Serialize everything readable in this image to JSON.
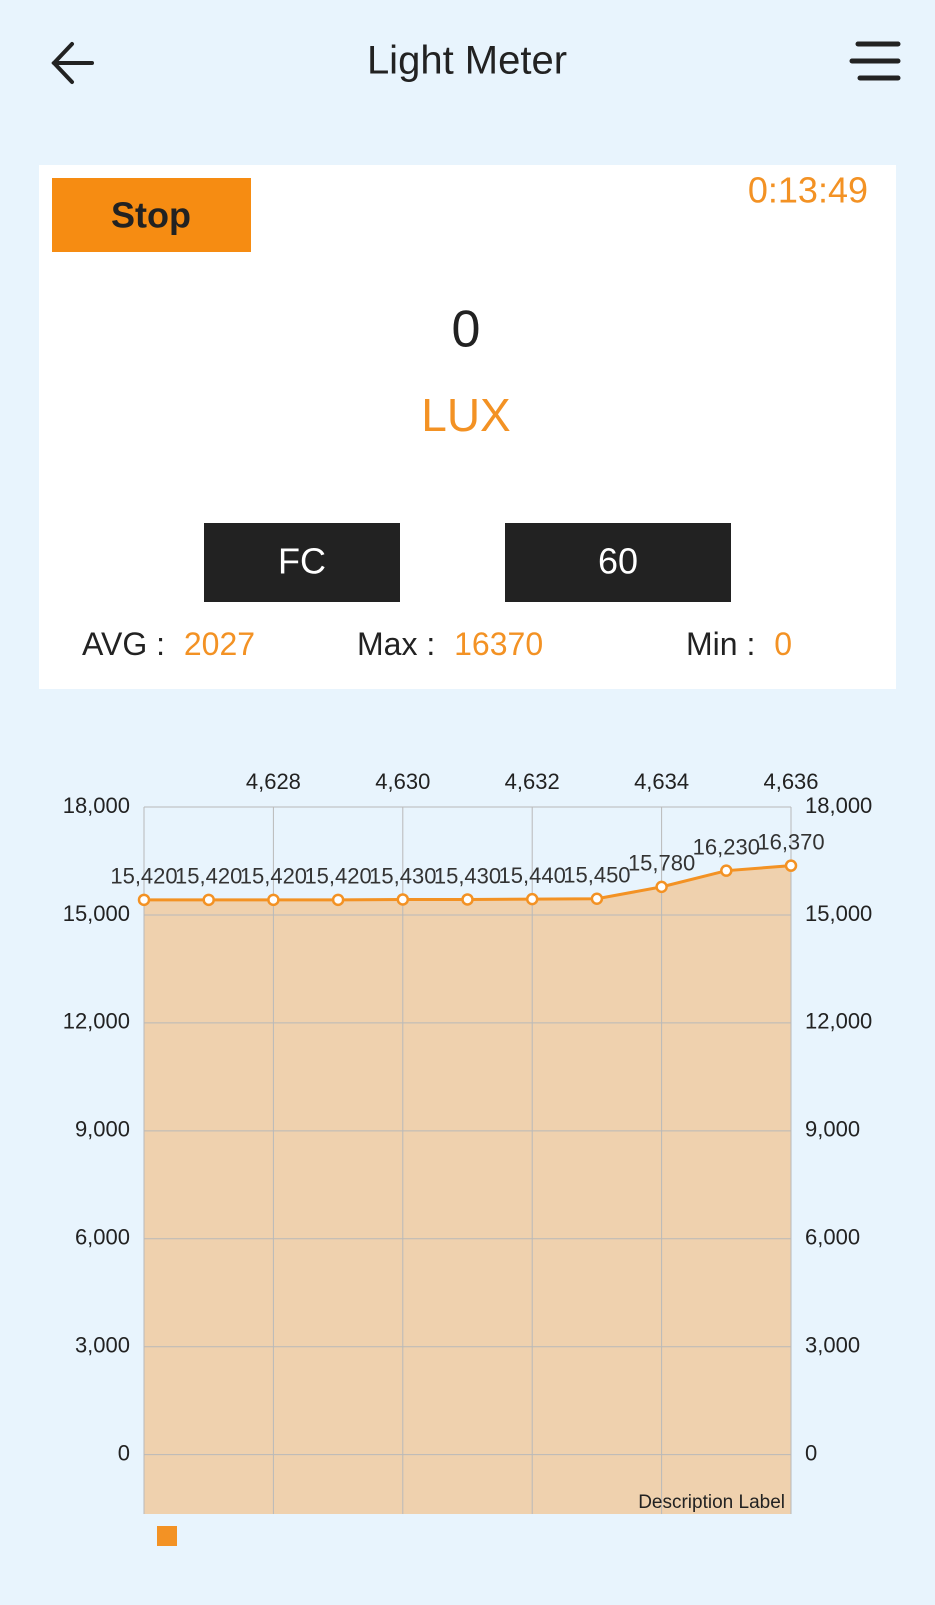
{
  "header": {
    "title": "Light Meter"
  },
  "panel": {
    "stop": "Stop",
    "timer": "0:13:49",
    "reading": "0",
    "unit": "LUX",
    "unit_button": "FC",
    "interval_button": "60",
    "avg_label": "AVG :",
    "avg": "2027",
    "max_label": "Max :",
    "max": "16370",
    "min_label": "Min :",
    "min": "0"
  },
  "chart_data": {
    "type": "area",
    "x": [
      4626,
      4627,
      4628,
      4629,
      4630,
      4631,
      4632,
      4633,
      4634,
      4635,
      4636
    ],
    "series": [
      {
        "color": "#f39224",
        "fill": "#efd1ae",
        "values": [
          15420,
          15420,
          15420,
          15420,
          15430,
          15430,
          15440,
          15450,
          15780,
          16230,
          16370
        ],
        "value_labels": [
          "15,420",
          "15,420",
          "15,420",
          "15,420",
          "15,430",
          "15,430",
          "15,440",
          "15,450",
          "15,780",
          "16,230",
          "16,370"
        ]
      }
    ],
    "xlim": [
      4626,
      4636
    ],
    "xticks": [
      {
        "value": 4628,
        "label": "4,628"
      },
      {
        "value": 4630,
        "label": "4,630"
      },
      {
        "value": 4632,
        "label": "4,632"
      },
      {
        "value": 4634,
        "label": "4,634"
      },
      {
        "value": 4636,
        "label": "4,636"
      }
    ],
    "ylim": [
      -1650,
      18000
    ],
    "yticks": [
      0,
      {
        "value": 3000,
        "label": "3,000"
      },
      {
        "value": 6000,
        "label": "6,000"
      },
      {
        "value": 9000,
        "label": "9,000"
      },
      {
        "value": 12000,
        "label": "12,000"
      },
      {
        "value": 15000,
        "label": "15,000"
      },
      {
        "value": 18000,
        "label": "18,000"
      }
    ],
    "y2lim": [
      -1650,
      18000
    ],
    "y2ticks": [
      0,
      {
        "value": 3000,
        "label": "3,000"
      },
      {
        "value": 6000,
        "label": "6,000"
      },
      {
        "value": 9000,
        "label": "9,000"
      },
      {
        "value": 12000,
        "label": "12,000"
      },
      {
        "value": 15000,
        "label": "15,000"
      },
      {
        "value": 18000,
        "label": "18,000"
      }
    ],
    "description": "Description Label",
    "grid": true
  }
}
